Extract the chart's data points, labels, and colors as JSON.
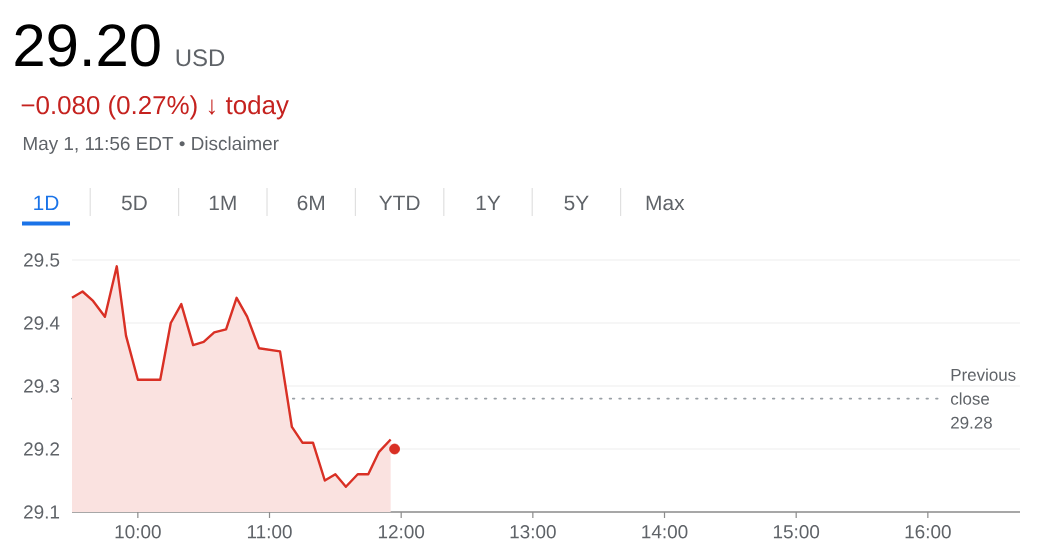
{
  "chart_data": {
    "type": "area",
    "title": "29.20",
    "annotations": [
      "USD",
      "−0.080 (0.27%) ↓ today",
      "May 1, 11:56 EDT • Disclaimer",
      "1D",
      "5D",
      "1M",
      "6M",
      "YTD",
      "1Y",
      "5Y",
      "Max"
    ],
    "series": [
      {
        "type": "area",
        "color": "#d93025",
        "x": [
          9.5,
          9.58,
          9.66,
          9.75,
          9.84,
          9.91,
          10.0,
          10.17,
          10.25,
          10.33,
          10.42,
          10.5,
          10.58,
          10.67,
          10.75,
          10.83,
          10.92,
          11.08,
          11.17,
          11.25,
          11.33,
          11.42,
          11.5,
          11.58,
          11.67,
          11.75,
          11.83,
          11.92
        ],
        "values": [
          29.44,
          29.45,
          29.435,
          29.41,
          29.49,
          29.38,
          29.31,
          29.31,
          29.4,
          29.43,
          29.365,
          29.37,
          29.385,
          29.39,
          29.44,
          29.41,
          29.36,
          29.355,
          29.235,
          29.21,
          29.21,
          29.15,
          29.16,
          29.14,
          29.16,
          29.16,
          29.195,
          29.215
        ]
      },
      {
        "type": "scatter",
        "color": "#d93025",
        "marker": "circle",
        "x": [
          11.95
        ],
        "values": [
          29.2
        ]
      }
    ],
    "xlim": [
      9.5,
      16.7
    ],
    "ylim": [
      29.1,
      29.5
    ],
    "xticks": [
      {
        "value": 10,
        "label": "10:00"
      },
      {
        "value": 11,
        "label": "11:00"
      },
      {
        "value": 12,
        "label": "12:00"
      },
      {
        "value": 13,
        "label": "13:00"
      },
      {
        "value": 14,
        "label": "14:00"
      },
      {
        "value": 15,
        "label": "15:00"
      },
      {
        "value": 16,
        "label": "16:00"
      }
    ],
    "yticks": [
      29.1,
      29.2,
      29.3,
      29.4,
      29.5
    ],
    "grid": "y",
    "ref_lines": [
      {
        "axis": "y",
        "value": 29.28,
        "label": "Previous close 29.28",
        "color": "#9aa0a6",
        "line_style": "dotted"
      }
    ]
  }
}
